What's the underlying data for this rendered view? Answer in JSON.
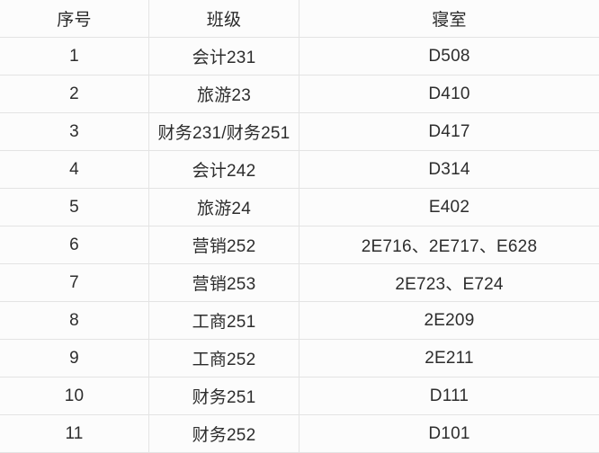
{
  "colors": {
    "background": "#fcfcfc",
    "border": "#e4e4e4",
    "text": "#2d2d2d"
  },
  "table": {
    "columns": [
      {
        "key": "index",
        "label": "序号"
      },
      {
        "key": "class",
        "label": "班级"
      },
      {
        "key": "dorm",
        "label": "寝室"
      }
    ],
    "rows": [
      {
        "index": "1",
        "class": "会计231",
        "dorm": "D508"
      },
      {
        "index": "2",
        "class": "旅游23",
        "dorm": "D410"
      },
      {
        "index": "3",
        "class": "财务231/财务251",
        "dorm": "D417"
      },
      {
        "index": "4",
        "class": "会计242",
        "dorm": "D314"
      },
      {
        "index": "5",
        "class": "旅游24",
        "dorm": "E402"
      },
      {
        "index": "6",
        "class": "营销252",
        "dorm": "2E716、2E717、E628"
      },
      {
        "index": "7",
        "class": "营销253",
        "dorm": "2E723、E724"
      },
      {
        "index": "8",
        "class": "工商251",
        "dorm": "2E209"
      },
      {
        "index": "9",
        "class": "工商252",
        "dorm": "2E211"
      },
      {
        "index": "10",
        "class": "财务251",
        "dorm": "D111"
      },
      {
        "index": "11",
        "class": "财务252",
        "dorm": "D101"
      }
    ]
  },
  "chart_data": {
    "type": "table",
    "title": "",
    "columns": [
      "序号",
      "班级",
      "寝室"
    ],
    "rows": [
      [
        "1",
        "会计231",
        "D508"
      ],
      [
        "2",
        "旅游23",
        "D410"
      ],
      [
        "3",
        "财务231/财务251",
        "D417"
      ],
      [
        "4",
        "会计242",
        "D314"
      ],
      [
        "5",
        "旅游24",
        "E402"
      ],
      [
        "6",
        "营销252",
        "2E716、2E717、E628"
      ],
      [
        "7",
        "营销253",
        "2E723、E724"
      ],
      [
        "8",
        "工商251",
        "2E209"
      ],
      [
        "9",
        "工商252",
        "2E211"
      ],
      [
        "10",
        "财务251",
        "D111"
      ],
      [
        "11",
        "财务252",
        "D101"
      ]
    ]
  }
}
